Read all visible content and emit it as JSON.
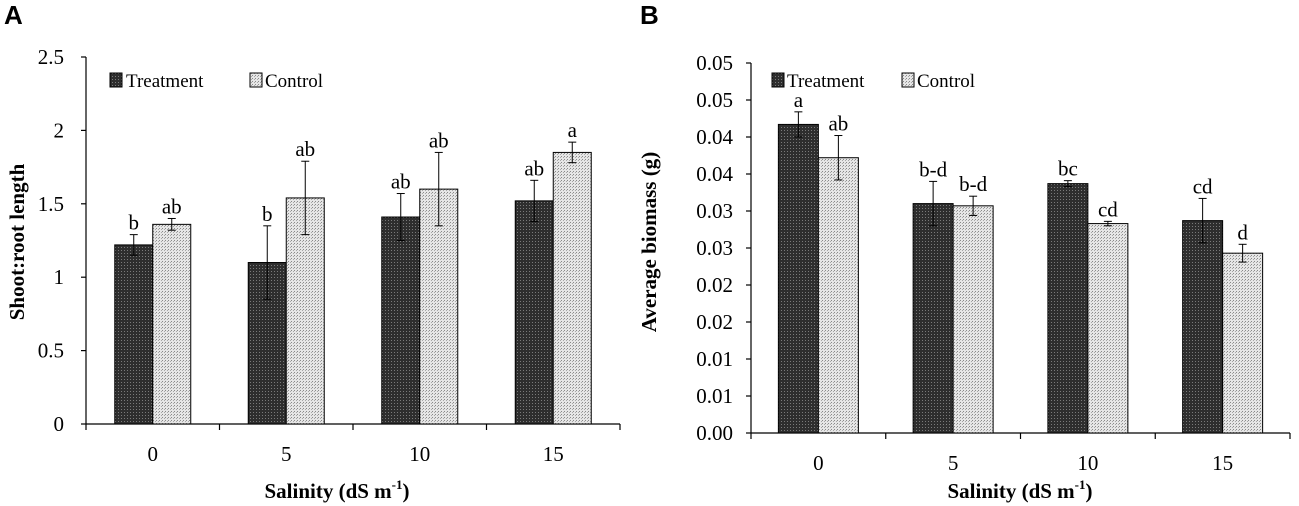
{
  "chart_data": [
    {
      "type": "bar",
      "panel_label": "A",
      "categories": [
        "0",
        "5",
        "10",
        "15"
      ],
      "series": [
        {
          "name": "Treatment",
          "color": "#3a3a3a",
          "pattern": "dark-dotted",
          "values": [
            1.22,
            1.1,
            1.41,
            1.52
          ],
          "errors": [
            0.07,
            0.25,
            0.16,
            0.14
          ],
          "letters": [
            "b",
            "b",
            "ab",
            "ab"
          ]
        },
        {
          "name": "Control",
          "color": "#cccccc",
          "pattern": "light-dotted",
          "values": [
            1.36,
            1.54,
            1.6,
            1.85
          ],
          "errors": [
            0.04,
            0.25,
            0.25,
            0.07
          ],
          "letters": [
            "ab",
            "ab",
            "ab",
            "a"
          ]
        }
      ],
      "ylim": [
        0,
        2.5
      ],
      "ytick_values": [
        0,
        0.5,
        1,
        1.5,
        2,
        2.5
      ],
      "ytick_labels": [
        "0",
        "0.5",
        "1",
        "1.5",
        "2",
        "2.5"
      ],
      "ylabel": "Shoot:root length",
      "xlabel": "Salinity (dS m",
      "xlabel_sup": "-1",
      "xlabel_close": ")",
      "legend": "top-left"
    },
    {
      "type": "bar",
      "panel_label": "B",
      "categories": [
        "0",
        "5",
        "10",
        "15"
      ],
      "series": [
        {
          "name": "Treatment",
          "color": "#3a3a3a",
          "pattern": "dark-dotted",
          "values": [
            0.0417,
            0.031,
            0.0337,
            0.0287
          ],
          "errors": [
            0.0017,
            0.003,
            0.0004,
            0.003
          ],
          "letters": [
            "a",
            "b-d",
            "bc",
            "cd"
          ]
        },
        {
          "name": "Control",
          "color": "#cccccc",
          "pattern": "light-dotted",
          "values": [
            0.0372,
            0.0307,
            0.0283,
            0.0243
          ],
          "errors": [
            0.003,
            0.0013,
            0.0003,
            0.0012
          ],
          "letters": [
            "ab",
            "b-d",
            "cd",
            "d"
          ]
        }
      ],
      "ylim": [
        0,
        0.05
      ],
      "ytick_values": [
        0,
        0.005,
        0.01,
        0.015,
        0.02,
        0.025,
        0.03,
        0.035,
        0.04,
        0.045,
        0.05
      ],
      "ytick_labels": [
        "0.00",
        "0.01",
        "0.01",
        "0.02",
        "0.02",
        "0.03",
        "0.03",
        "0.04",
        "0.04",
        "0.05",
        "0.05"
      ],
      "ylabel": "Average biomass (g)",
      "xlabel": "Salinity (dS m",
      "xlabel_sup": "-1",
      "xlabel_close": ")",
      "legend": "top-left"
    }
  ]
}
